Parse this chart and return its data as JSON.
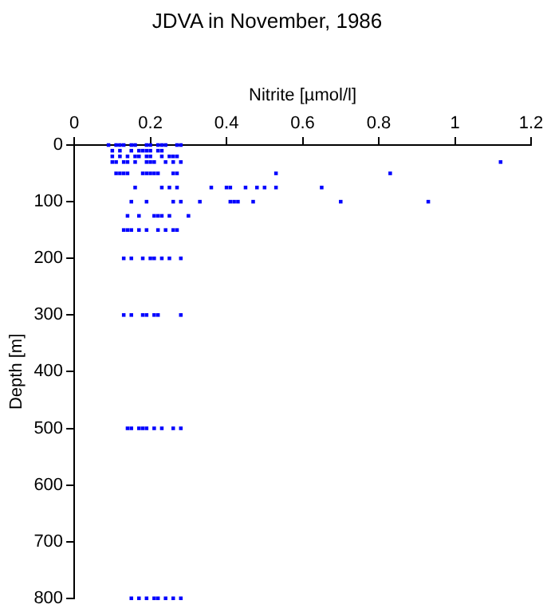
{
  "chart_data": {
    "type": "scatter",
    "title": "JDVA in November, 1986",
    "xlabel": "Nitrite [µmol/l]",
    "ylabel": "Depth [m]",
    "x": [
      0.09,
      0.11,
      0.12,
      0.13,
      0.15,
      0.16,
      0.19,
      0.2,
      0.22,
      0.23,
      0.24,
      0.27,
      0.28,
      0.1,
      0.12,
      0.15,
      0.17,
      0.18,
      0.19,
      0.2,
      0.22,
      0.23,
      0.1,
      0.12,
      0.14,
      0.16,
      0.17,
      0.19,
      0.2,
      0.23,
      0.25,
      0.26,
      0.27,
      0.1,
      0.11,
      0.13,
      0.14,
      0.16,
      0.19,
      0.2,
      0.21,
      0.24,
      0.26,
      0.28,
      1.12,
      0.11,
      0.12,
      0.13,
      0.14,
      0.18,
      0.19,
      0.2,
      0.21,
      0.22,
      0.26,
      0.27,
      0.53,
      0.83,
      0.16,
      0.23,
      0.25,
      0.27,
      0.36,
      0.4,
      0.41,
      0.45,
      0.48,
      0.5,
      0.53,
      0.65,
      0.15,
      0.19,
      0.26,
      0.28,
      0.33,
      0.41,
      0.42,
      0.43,
      0.47,
      0.7,
      0.93,
      0.14,
      0.17,
      0.21,
      0.22,
      0.23,
      0.25,
      0.3,
      0.13,
      0.14,
      0.15,
      0.17,
      0.19,
      0.22,
      0.24,
      0.26,
      0.27,
      0.13,
      0.15,
      0.18,
      0.2,
      0.21,
      0.23,
      0.25,
      0.28,
      0.13,
      0.15,
      0.18,
      0.19,
      0.21,
      0.22,
      0.28,
      0.14,
      0.15,
      0.17,
      0.18,
      0.19,
      0.21,
      0.23,
      0.26,
      0.28,
      0.15,
      0.17,
      0.19,
      0.21,
      0.22,
      0.24,
      0.26,
      0.28
    ],
    "values": [
      0,
      0,
      0,
      0,
      0,
      0,
      0,
      0,
      0,
      0,
      0,
      0,
      0,
      10,
      10,
      10,
      10,
      10,
      10,
      10,
      10,
      10,
      20,
      20,
      20,
      20,
      20,
      20,
      20,
      20,
      20,
      20,
      20,
      30,
      30,
      30,
      30,
      30,
      30,
      30,
      30,
      30,
      30,
      30,
      30,
      50,
      50,
      50,
      50,
      50,
      50,
      50,
      50,
      50,
      50,
      50,
      50,
      50,
      75,
      75,
      75,
      75,
      75,
      75,
      75,
      75,
      75,
      75,
      75,
      75,
      100,
      100,
      100,
      100,
      100,
      100,
      100,
      100,
      100,
      100,
      100,
      125,
      125,
      125,
      125,
      125,
      125,
      125,
      150,
      150,
      150,
      150,
      150,
      150,
      150,
      150,
      150,
      200,
      200,
      200,
      200,
      200,
      200,
      200,
      200,
      300,
      300,
      300,
      300,
      300,
      300,
      300,
      500,
      500,
      500,
      500,
      500,
      500,
      500,
      500,
      500,
      800,
      800,
      800,
      800,
      800,
      800,
      800,
      800
    ],
    "color": "#0000ff",
    "marker": "square",
    "xlim": [
      0,
      1.2
    ],
    "xticks": [
      0,
      0.2,
      0.4,
      0.6,
      0.8,
      1,
      1.2
    ],
    "ylim": [
      800,
      0
    ],
    "yticks": [
      0,
      100,
      200,
      300,
      400,
      500,
      600,
      700,
      800
    ],
    "grid": false,
    "legend": false
  }
}
